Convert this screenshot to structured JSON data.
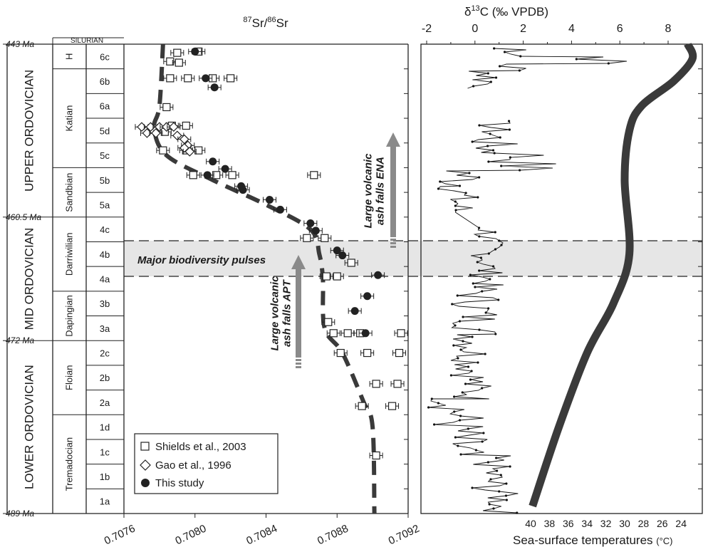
{
  "chart_data": [
    {
      "type": "scatter",
      "title": "87Sr/86Sr",
      "title_parts": {
        "sup1": "87",
        "mid": "Sr/",
        "sup2": "86",
        "end": "Sr"
      },
      "x_ticks": [
        "0.7076",
        "0.7080",
        "0.7084",
        "0.7088",
        "0.7092"
      ],
      "xlim": [
        0.7076,
        0.7092
      ],
      "y_axis": "stage slices (top = youngest)",
      "age_labels": [
        {
          "label": "443 Ma",
          "ma": 443
        },
        {
          "label": "460.5 Ma",
          "ma": 460.5
        },
        {
          "label": "472 Ma",
          "ma": 472
        },
        {
          "label": "489 Ma",
          "ma": 489
        }
      ],
      "periods": [
        "UPPER ORDOVICIAN",
        "MID ORDOVICIAN",
        "LOWER ORDOVICIAN"
      ],
      "silurian_label": "SILURIAN",
      "stages": [
        "H",
        "Katian",
        "Sandbian",
        "Darriwilian",
        "Dapingian",
        "Floian",
        "Tremadocian"
      ],
      "slices": [
        "6c",
        "6b",
        "6a",
        "5d",
        "5c",
        "5b",
        "5a",
        "4c",
        "4b",
        "4a",
        "3b",
        "3a",
        "2c",
        "2b",
        "2a",
        "1d",
        "1c",
        "1b",
        "1a"
      ],
      "legend": [
        "Shields et al., 2003",
        "Gao et al., 1996",
        "This study"
      ],
      "series": [
        {
          "name": "Shields et al., 2003",
          "marker": "square",
          "points": [
            {
              "slice": "6c",
              "x": 0.7079,
              "f": 0.35
            },
            {
              "slice": "6c",
              "x": 0.70802,
              "f": 0.3
            },
            {
              "slice": "6c",
              "x": 0.70786,
              "f": 0.7
            },
            {
              "slice": "6c",
              "x": 0.70791,
              "f": 0.75
            },
            {
              "slice": "6b",
              "x": 0.70786,
              "f": 0.38
            },
            {
              "slice": "6b",
              "x": 0.70796,
              "f": 0.38
            },
            {
              "slice": "6b",
              "x": 0.7081,
              "f": 0.38
            },
            {
              "slice": "6b",
              "x": 0.7082,
              "f": 0.38
            },
            {
              "slice": "6a",
              "x": 0.70784,
              "f": 0.55
            },
            {
              "slice": "5d",
              "x": 0.70787,
              "f": 0.3
            },
            {
              "slice": "5d",
              "x": 0.70795,
              "f": 0.3
            },
            {
              "slice": "5d",
              "x": 0.70783,
              "f": 0.55
            },
            {
              "slice": "5c",
              "x": 0.70782,
              "f": 0.3
            },
            {
              "slice": "5c",
              "x": 0.70795,
              "f": 0.3
            },
            {
              "slice": "5c",
              "x": 0.70802,
              "f": 0.3
            },
            {
              "slice": "5b",
              "x": 0.70799,
              "f": 0.3
            },
            {
              "slice": "5b",
              "x": 0.70812,
              "f": 0.3
            },
            {
              "slice": "5b",
              "x": 0.70821,
              "f": 0.3
            },
            {
              "slice": "5b",
              "x": 0.70867,
              "f": 0.3
            },
            {
              "slice": "4c",
              "x": 0.70873,
              "f": 0.85
            },
            {
              "slice": "4c",
              "x": 0.70863,
              "f": 0.85
            },
            {
              "slice": "4b",
              "x": 0.70888,
              "f": 0.85
            },
            {
              "slice": "4a",
              "x": 0.7088,
              "f": 0.4
            },
            {
              "slice": "4a",
              "x": 0.70874,
              "f": 0.4
            },
            {
              "slice": "3a",
              "x": 0.70875,
              "f": 0.25
            },
            {
              "slice": "3a",
              "x": 0.70878,
              "f": 0.7
            },
            {
              "slice": "3a",
              "x": 0.70886,
              "f": 0.7
            },
            {
              "slice": "3a",
              "x": 0.70893,
              "f": 0.7
            },
            {
              "slice": "3a",
              "x": 0.70916,
              "f": 0.7
            },
            {
              "slice": "2c",
              "x": 0.70882,
              "f": 0.5
            },
            {
              "slice": "2c",
              "x": 0.70897,
              "f": 0.5
            },
            {
              "slice": "2c",
              "x": 0.70915,
              "f": 0.5
            },
            {
              "slice": "2b",
              "x": 0.70902,
              "f": 0.75
            },
            {
              "slice": "2b",
              "x": 0.70914,
              "f": 0.75
            },
            {
              "slice": "2a",
              "x": 0.70894,
              "f": 0.65
            },
            {
              "slice": "2a",
              "x": 0.70911,
              "f": 0.65
            },
            {
              "slice": "1c",
              "x": 0.70902,
              "f": 0.65
            }
          ]
        },
        {
          "name": "Gao et al., 1996",
          "marker": "diamond",
          "points": [
            {
              "slice": "5d",
              "x": 0.7077,
              "f": 0.35
            },
            {
              "slice": "5d",
              "x": 0.70775,
              "f": 0.35
            },
            {
              "slice": "5d",
              "x": 0.7078,
              "f": 0.35
            },
            {
              "slice": "5d",
              "x": 0.70784,
              "f": 0.35
            },
            {
              "slice": "5d",
              "x": 0.70788,
              "f": 0.35
            },
            {
              "slice": "5d",
              "x": 0.70773,
              "f": 0.6
            },
            {
              "slice": "5d",
              "x": 0.70778,
              "f": 0.6
            },
            {
              "slice": "5d",
              "x": 0.7079,
              "f": 0.7
            },
            {
              "slice": "5d",
              "x": 0.70794,
              "f": 0.85
            },
            {
              "slice": "5c",
              "x": 0.70796,
              "f": 0.1
            },
            {
              "slice": "5c",
              "x": 0.70794,
              "f": 0.2
            },
            {
              "slice": "5c",
              "x": 0.70797,
              "f": 0.35
            }
          ]
        },
        {
          "name": "This study",
          "marker": "circle",
          "points": [
            {
              "slice": "6c",
              "x": 0.708,
              "f": 0.3
            },
            {
              "slice": "6b",
              "x": 0.70806,
              "f": 0.38
            },
            {
              "slice": "6b",
              "x": 0.70811,
              "f": 0.75
            },
            {
              "slice": "5c",
              "x": 0.7081,
              "f": 0.75
            },
            {
              "slice": "5b",
              "x": 0.70817,
              "f": 0.05
            },
            {
              "slice": "5b",
              "x": 0.70807,
              "f": 0.3
            },
            {
              "slice": "5b",
              "x": 0.70826,
              "f": 0.75
            },
            {
              "slice": "5b",
              "x": 0.70827,
              "f": 0.9
            },
            {
              "slice": "5a",
              "x": 0.70842,
              "f": 0.3
            },
            {
              "slice": "5a",
              "x": 0.70848,
              "f": 0.7
            },
            {
              "slice": "4c",
              "x": 0.70865,
              "f": 0.25
            },
            {
              "slice": "4c",
              "x": 0.70868,
              "f": 0.55
            },
            {
              "slice": "4b",
              "x": 0.7088,
              "f": 0.35
            },
            {
              "slice": "4b",
              "x": 0.70883,
              "f": 0.55
            },
            {
              "slice": "4a",
              "x": 0.70903,
              "f": 0.35
            },
            {
              "slice": "3b",
              "x": 0.70897,
              "f": 0.2
            },
            {
              "slice": "3b",
              "x": 0.7089,
              "f": 0.8
            },
            {
              "slice": "3a",
              "x": 0.70896,
              "f": 0.7
            }
          ]
        }
      ],
      "trend_line": {
        "style": "dashed",
        "points": [
          {
            "slice": "6c",
            "f": 0.0,
            "x": 0.70782
          },
          {
            "slice": "6a",
            "f": 0.5,
            "x": 0.7078
          },
          {
            "slice": "5d",
            "f": 0.4,
            "x": 0.70777
          },
          {
            "slice": "5c",
            "f": 0.5,
            "x": 0.70784
          },
          {
            "slice": "5b",
            "f": 0.5,
            "x": 0.7081
          },
          {
            "slice": "5a",
            "f": 0.5,
            "x": 0.7084
          },
          {
            "slice": "4c",
            "f": 0.5,
            "x": 0.70865
          },
          {
            "slice": "4b",
            "f": 0.5,
            "x": 0.7087
          },
          {
            "slice": "4a",
            "f": 0.5,
            "x": 0.70872
          },
          {
            "slice": "3a",
            "f": 0.5,
            "x": 0.70873
          },
          {
            "slice": "2c",
            "f": 0.5,
            "x": 0.70883
          },
          {
            "slice": "2a",
            "f": 0.5,
            "x": 0.70895
          },
          {
            "slice": "1d",
            "f": 0.5,
            "x": 0.709
          },
          {
            "slice": "1a",
            "f": 1.0,
            "x": 0.70901
          }
        ]
      },
      "annotations": {
        "band_label": "Major biodiversity pulses",
        "arrow_apt": [
          "Large volcanic",
          "ash falls APT"
        ],
        "arrow_ena": [
          "Large volcanic",
          "ash falls ENA"
        ]
      }
    },
    {
      "type": "line",
      "title": "δ13C (‰ VPDB)",
      "title_parts": {
        "delta": "δ",
        "sup": "13",
        "rest": "C  (‰ VPDB)"
      },
      "x_ticks_top": [
        "-2",
        "0",
        "2",
        "4",
        "6",
        "8"
      ],
      "xlim_top": [
        -3,
        12.5
      ],
      "x_ticks_bottom": [
        "40",
        "38",
        "36",
        "34",
        "32",
        "30",
        "28",
        "26",
        "24"
      ],
      "xlabel_bottom": "Sea-surface temperatures",
      "xlabel_bottom_unit": "(°C)",
      "series": [
        {
          "name": "δ13C",
          "note": "values sampled down section (top = youngest)"
        },
        {
          "name": "Sea-surface temperatures",
          "unit": "°C",
          "points": [
            {
              "slice": "6c",
              "f": 0.0,
              "value": 23.3
            },
            {
              "slice": "6c",
              "f": 0.6,
              "value": 22.8
            },
            {
              "slice": "6b",
              "f": 0.5,
              "value": 24.8
            },
            {
              "slice": "6a",
              "f": 0.5,
              "value": 28.2
            },
            {
              "slice": "5d",
              "f": 0.5,
              "value": 29.5
            },
            {
              "slice": "5b",
              "f": 0.5,
              "value": 30.0
            },
            {
              "slice": "4b",
              "f": 0.5,
              "value": 29.5
            },
            {
              "slice": "3b",
              "f": 0.5,
              "value": 31.2
            },
            {
              "slice": "2c",
              "f": 0.5,
              "value": 34.0
            },
            {
              "slice": "1d",
              "f": 0.5,
              "value": 37.0
            },
            {
              "slice": "1a",
              "f": 0.7,
              "value": 39.8
            }
          ]
        }
      ]
    }
  ]
}
